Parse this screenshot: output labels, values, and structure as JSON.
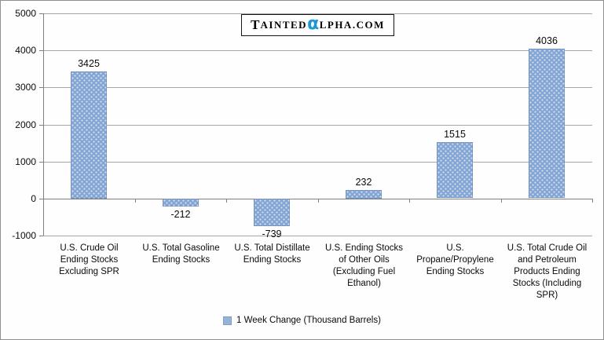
{
  "logo": {
    "lead": "T",
    "part1": "AINTED",
    "alpha": "α",
    "part2": "LPHA.COM"
  },
  "chart_data": {
    "type": "bar",
    "title": "",
    "categories": [
      "U.S. Crude Oil Ending Stocks Excluding SPR",
      "U.S. Total Gasoline Ending Stocks",
      "U.S. Total Distillate Ending Stocks",
      "U.S. Ending Stocks of Other Oils (Excluding Fuel Ethanol)",
      "U.S. Propane/Propylene Ending Stocks",
      "U.S. Total Crude Oil and Petroleum Products Ending Stocks (Including SPR)"
    ],
    "values": [
      3425,
      -212,
      -739,
      232,
      1515,
      4036
    ],
    "data_labels": [
      "3425",
      "-212",
      "-739",
      "232",
      "1515",
      "4036"
    ],
    "xlabel": "",
    "ylabel": "",
    "ylim": [
      -1000,
      5000
    ],
    "yticks": [
      -1000,
      0,
      1000,
      2000,
      3000,
      4000,
      5000
    ],
    "grid": true,
    "legend_position": "bottom",
    "legend_label": "1 Week Change (Thousand Barrels)"
  },
  "colors": {
    "bar": "#7FA5D9",
    "legend_swatch": "#95B3D7",
    "grid": "#A6A6A6",
    "axis": "#808080",
    "alpha_blue": "#1B98D6"
  }
}
